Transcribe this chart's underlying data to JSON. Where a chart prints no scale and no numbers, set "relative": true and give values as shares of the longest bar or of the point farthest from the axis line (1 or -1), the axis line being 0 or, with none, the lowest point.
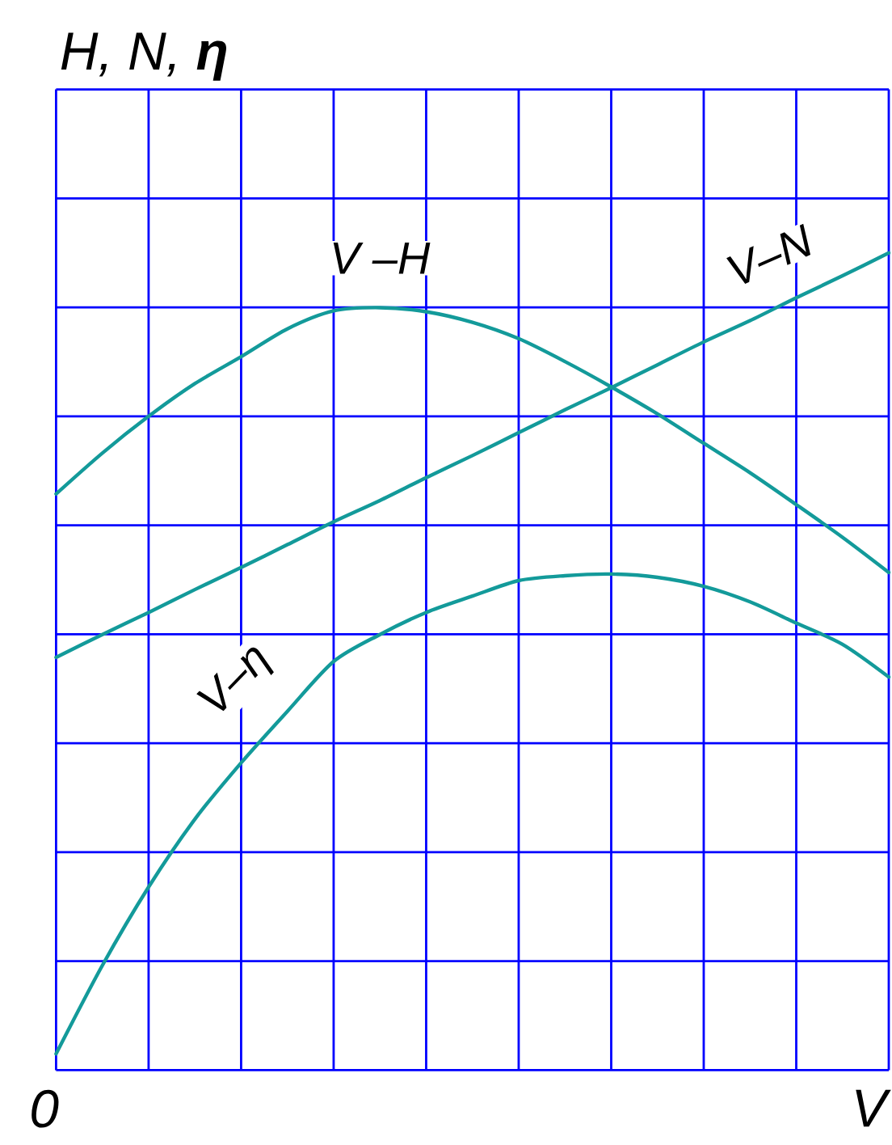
{
  "chart_data": {
    "type": "line",
    "relative": true,
    "ylabel": "H, N, **η**",
    "xlabel": "V",
    "annotations": [
      "0"
    ],
    "categories": [
      null,
      null,
      null,
      null,
      null,
      null,
      null,
      null,
      null,
      null,
      null,
      null,
      null,
      null,
      null,
      null,
      null,
      null,
      null
    ],
    "series": [
      {
        "name": "V –H",
        "color": "#139a9a",
        "values": [
          0.705,
          0.755,
          0.8,
          0.84,
          0.873,
          0.907,
          0.929,
          0.933,
          0.928,
          0.915,
          0.895,
          0.867,
          0.836,
          0.803,
          0.767,
          0.731,
          0.692,
          0.652,
          0.609
        ]
      },
      {
        "name": "V–N",
        "color": "#139a9a",
        "values": [
          0.505,
          0.533,
          0.56,
          0.588,
          0.615,
          0.643,
          0.671,
          0.697,
          0.725,
          0.752,
          0.78,
          0.808,
          0.835,
          0.863,
          0.891,
          0.917,
          0.945,
          0.972,
          1.0
        ]
      },
      {
        "name": "V–η",
        "color": "#139a9a",
        "values": [
          0.02,
          0.128,
          0.224,
          0.307,
          0.376,
          0.439,
          0.5,
          0.533,
          0.56,
          0.58,
          0.599,
          0.605,
          0.607,
          0.603,
          0.592,
          0.573,
          0.547,
          0.521,
          0.481
        ]
      }
    ],
    "grid": true,
    "marker": "none",
    "line_style": "solid"
  }
}
